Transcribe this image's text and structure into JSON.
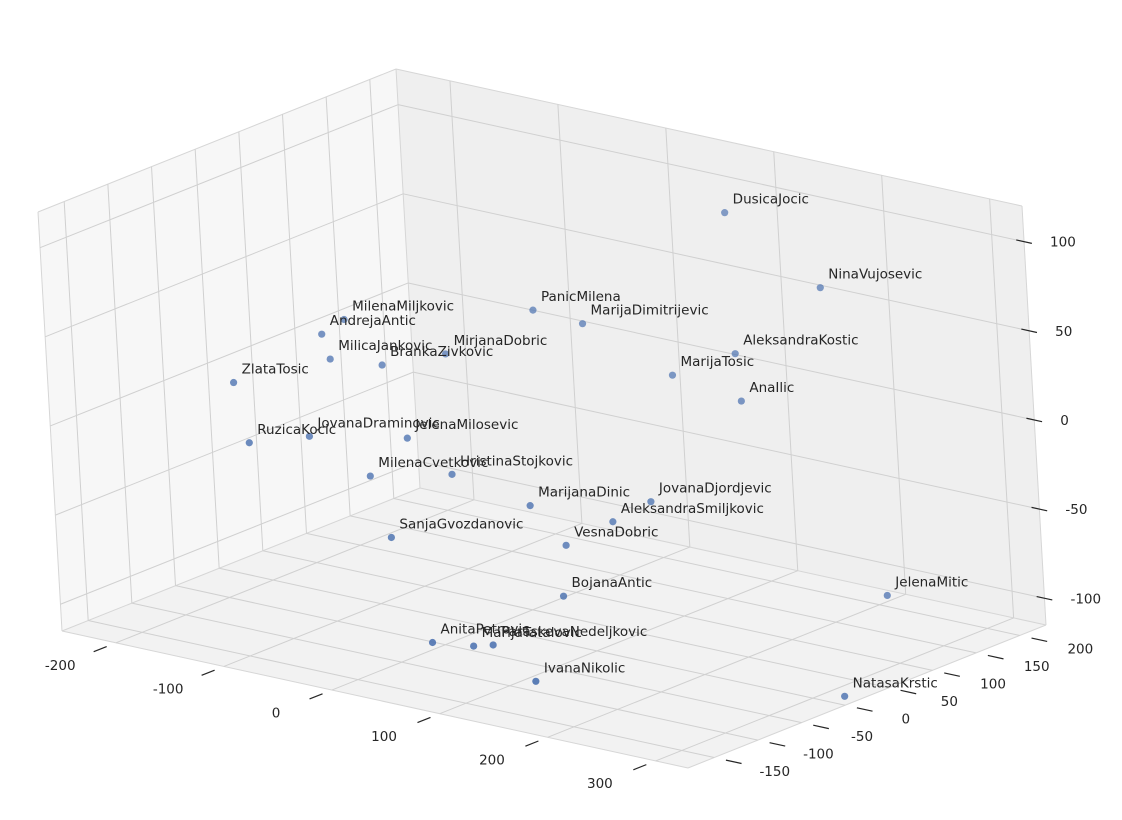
{
  "chart_data": {
    "type": "scatter",
    "dimensions": 3,
    "title": "",
    "xlabel": "",
    "ylabel": "",
    "zlabel": "",
    "grid": true,
    "marker_color": "#4c72b0",
    "xlim": [
      -250,
      330
    ],
    "ylim": [
      -180,
      230
    ],
    "zlim": [
      -115,
      120
    ],
    "x_ticks": [
      "-200",
      "-100",
      "0",
      "100",
      "200",
      "300"
    ],
    "y_ticks": [
      "-150",
      "-100",
      "-50",
      "0",
      "50",
      "100",
      "150",
      "200"
    ],
    "z_ticks": [
      "-100",
      "-50",
      "0",
      "50",
      "100"
    ],
    "points": [
      {
        "label": "DusicaJocic",
        "x": 80,
        "y": 195,
        "z": 90
      },
      {
        "label": "NinaVujosevic",
        "x": 195,
        "y": 160,
        "z": 70
      },
      {
        "label": "AleksandraKostic",
        "x": 120,
        "y": 150,
        "z": 25
      },
      {
        "label": "PanicMilena",
        "x": -80,
        "y": 165,
        "z": 20
      },
      {
        "label": "MarijaDimitrijevic",
        "x": -30,
        "y": 160,
        "z": 20
      },
      {
        "label": "MarijaTosic",
        "x": 60,
        "y": 150,
        "z": 5
      },
      {
        "label": "AnaIlic",
        "x": 140,
        "y": 130,
        "z": 5
      },
      {
        "label": "MilenaMiljkovic",
        "x": -220,
        "y": 120,
        "z": 5
      },
      {
        "label": "AndrejaAntic",
        "x": -225,
        "y": 100,
        "z": 0
      },
      {
        "label": "MirjanaDobric",
        "x": -135,
        "y": 130,
        "z": -5
      },
      {
        "label": "MilicaJankovic",
        "x": -210,
        "y": 90,
        "z": -10
      },
      {
        "label": "BrankaZivkovic",
        "x": -170,
        "y": 100,
        "z": -10
      },
      {
        "label": "ZlataTosic",
        "x": -260,
        "y": 40,
        "z": -20
      },
      {
        "label": "JelenaMilosevic",
        "x": -100,
        "y": 40,
        "z": -30
      },
      {
        "label": "JovanaDraminovic",
        "x": -175,
        "y": 20,
        "z": -35
      },
      {
        "label": "RuzicaKocic",
        "x": -215,
        "y": 0,
        "z": -40
      },
      {
        "label": "HristinaStojkovic",
        "x": -60,
        "y": 40,
        "z": -45
      },
      {
        "label": "MilenaCvetkovic",
        "x": -120,
        "y": 20,
        "z": -50
      },
      {
        "label": "JovanaDjordjevic",
        "x": 100,
        "y": 70,
        "z": -45
      },
      {
        "label": "MarijanaDinic",
        "x": 20,
        "y": 30,
        "z": -50
      },
      {
        "label": "AleksandraSmiljkovic",
        "x": 80,
        "y": 50,
        "z": -55
      },
      {
        "label": "VesnaDobric",
        "x": 60,
        "y": 20,
        "z": -65
      },
      {
        "label": "JelenaMitic",
        "x": 300,
        "y": 90,
        "z": -75
      },
      {
        "label": "SanjaGvozdanovic",
        "x": -70,
        "y": -20,
        "z": -70
      },
      {
        "label": "BojanaAntic",
        "x": 80,
        "y": -10,
        "z": -85
      },
      {
        "label": "NatasaKrstic",
        "x": 330,
        "y": 0,
        "z": -110
      },
      {
        "label": "ParaskevaNedeljkovic",
        "x": 70,
        "y": -80,
        "z": -100
      },
      {
        "label": "AnitaPetrovic",
        "x": 30,
        "y": -100,
        "z": -100
      },
      {
        "label": "MarijaTatalovic",
        "x": 60,
        "y": -90,
        "z": -100
      },
      {
        "label": "IvanaNikolic",
        "x": 150,
        "y": -130,
        "z": -100
      }
    ]
  }
}
